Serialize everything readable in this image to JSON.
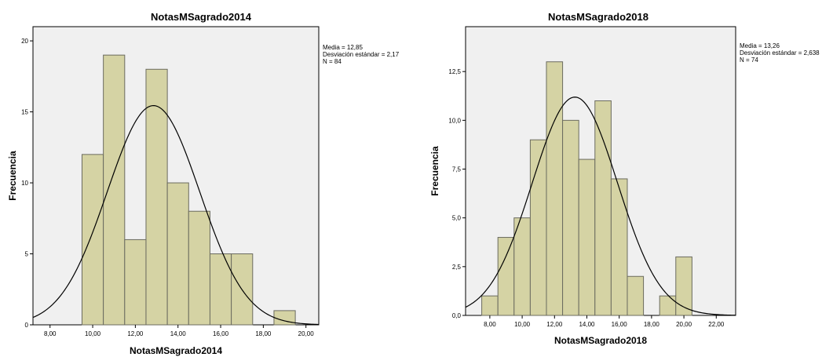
{
  "chart_data": [
    {
      "type": "bar",
      "title": "NotasMSagrado2014",
      "xlabel": "NotasMSagrado2014",
      "ylabel": "Frecuencia",
      "bar_color": "#d5d3a4",
      "xlim": [
        7.2,
        20.6
      ],
      "ylim": [
        0,
        21
      ],
      "xticks": [
        8,
        10,
        12,
        14,
        16,
        18,
        20
      ],
      "xtick_labels": [
        "8,00",
        "10,00",
        "12,00",
        "14,00",
        "16,00",
        "18,00",
        "20,00"
      ],
      "yticks": [
        0,
        5,
        10,
        15,
        20
      ],
      "ytick_labels": [
        "0",
        "5",
        "10",
        "15",
        "20"
      ],
      "bins": [
        {
          "start": 9.5,
          "end": 10.5,
          "value": 12
        },
        {
          "start": 10.5,
          "end": 11.5,
          "value": 19
        },
        {
          "start": 11.5,
          "end": 12.5,
          "value": 6
        },
        {
          "start": 12.5,
          "end": 13.5,
          "value": 18
        },
        {
          "start": 13.5,
          "end": 14.5,
          "value": 10
        },
        {
          "start": 14.5,
          "end": 15.5,
          "value": 8
        },
        {
          "start": 15.5,
          "end": 16.5,
          "value": 5
        },
        {
          "start": 16.5,
          "end": 17.5,
          "value": 5
        },
        {
          "start": 18.5,
          "end": 19.5,
          "value": 1
        }
      ],
      "normal_curve": {
        "mean": 12.85,
        "sd": 2.17,
        "n": 84,
        "bin_width": 1
      },
      "stats": [
        "Media = 12,85",
        "Desviación estándar = 2,17",
        "N = 84"
      ]
    },
    {
      "type": "bar",
      "title": "NotasMSagrado2018",
      "xlabel": "NotasMSagrado2018",
      "ylabel": "Frecuencia",
      "bar_color": "#d5d3a4",
      "xlim": [
        6.5,
        23.2
      ],
      "ylim": [
        0,
        14.8
      ],
      "xticks": [
        8,
        10,
        12,
        14,
        16,
        18,
        20,
        22
      ],
      "xtick_labels": [
        "8,00",
        "10,00",
        "12,00",
        "14,00",
        "16,00",
        "18,00",
        "20,00",
        "22,00"
      ],
      "yticks": [
        0,
        2.5,
        5,
        7.5,
        10,
        12.5
      ],
      "ytick_labels": [
        "0,0",
        "2,5",
        "5,0",
        "7,5",
        "10,0",
        "12,5"
      ],
      "bins": [
        {
          "start": 7.5,
          "end": 8.5,
          "value": 1
        },
        {
          "start": 8.5,
          "end": 9.5,
          "value": 4
        },
        {
          "start": 9.5,
          "end": 10.5,
          "value": 5
        },
        {
          "start": 10.5,
          "end": 11.5,
          "value": 9
        },
        {
          "start": 11.5,
          "end": 12.5,
          "value": 13
        },
        {
          "start": 12.5,
          "end": 13.5,
          "value": 10
        },
        {
          "start": 13.5,
          "end": 14.5,
          "value": 8
        },
        {
          "start": 14.5,
          "end": 15.5,
          "value": 11
        },
        {
          "start": 15.5,
          "end": 16.5,
          "value": 7
        },
        {
          "start": 16.5,
          "end": 17.5,
          "value": 2
        },
        {
          "start": 18.5,
          "end": 19.5,
          "value": 1
        },
        {
          "start": 19.5,
          "end": 20.5,
          "value": 3
        }
      ],
      "normal_curve": {
        "mean": 13.26,
        "sd": 2.638,
        "n": 74,
        "bin_width": 1
      },
      "stats": [
        "Media = 13,26",
        "Desviación estándar = 2,638",
        "N = 74"
      ]
    }
  ]
}
